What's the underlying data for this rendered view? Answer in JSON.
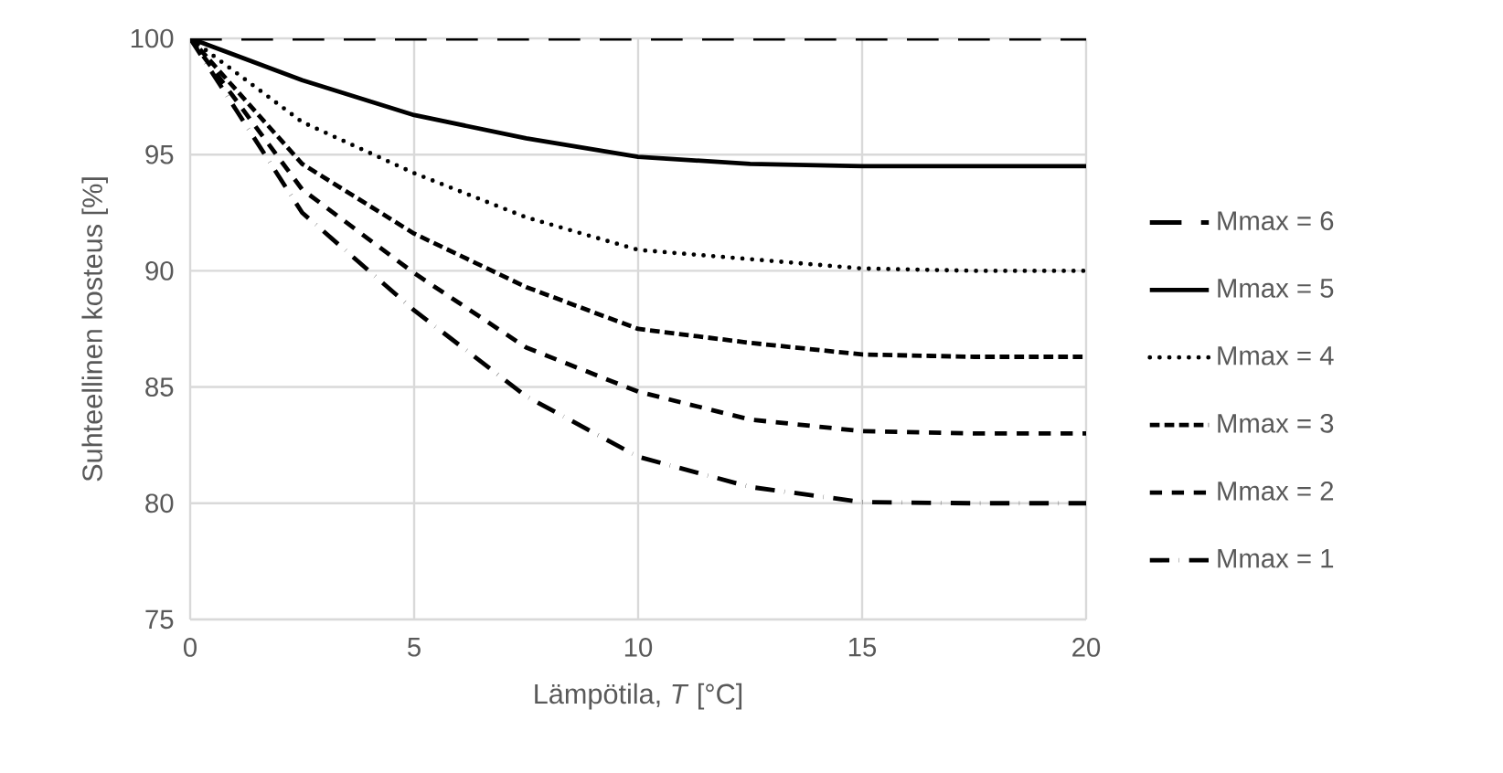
{
  "chart_data": {
    "type": "line",
    "xlabel": "Lämpötila, *T* [°C]",
    "ylabel": "Suhteellinen kosteus [%]",
    "xlim": [
      0,
      20
    ],
    "ylim": [
      75,
      100
    ],
    "xticks": [
      0,
      5,
      10,
      15,
      20
    ],
    "yticks": [
      75,
      80,
      85,
      90,
      95,
      100
    ],
    "grid": true,
    "legend": "right",
    "marker": "none",
    "series": [
      {
        "name": "Mmax = 6",
        "color": "#000000",
        "line_style": "long dashed",
        "x": [
          0,
          5,
          10,
          15,
          20
        ],
        "values": [
          100,
          100,
          100,
          100,
          100
        ]
      },
      {
        "name": "Mmax = 5",
        "color": "#000000",
        "line_style": "solid",
        "x": [
          0,
          2.5,
          5,
          7.5,
          10,
          12.5,
          15,
          17.5,
          20
        ],
        "values": [
          100,
          98.2,
          96.7,
          95.7,
          94.9,
          94.6,
          94.5,
          94.5,
          94.5
        ]
      },
      {
        "name": "Mmax = 4",
        "color": "#000000",
        "line_style": "dotted",
        "x": [
          0,
          2.5,
          5,
          7.5,
          10,
          12.5,
          15,
          17.5,
          20
        ],
        "values": [
          100,
          96.4,
          94.2,
          92.3,
          90.9,
          90.5,
          90.1,
          90.0,
          90.0
        ]
      },
      {
        "name": "Mmax = 3",
        "color": "#000000",
        "line_style": "densely dashed",
        "x": [
          0,
          2.5,
          5,
          7.5,
          10,
          12.5,
          15,
          17.5,
          20
        ],
        "values": [
          100,
          94.6,
          91.6,
          89.3,
          87.5,
          86.9,
          86.4,
          86.3,
          86.3
        ]
      },
      {
        "name": "Mmax = 2",
        "color": "#000000",
        "line_style": "dashed",
        "x": [
          0,
          2.5,
          5,
          7.5,
          10,
          12.5,
          15,
          17.5,
          20
        ],
        "values": [
          100,
          93.5,
          89.9,
          86.7,
          84.8,
          83.6,
          83.1,
          83.0,
          83.0
        ]
      },
      {
        "name": "Mmax = 1",
        "color": "#000000",
        "line_style": "dash dot",
        "x": [
          0,
          2.5,
          5,
          7.5,
          10,
          12.5,
          15,
          17.5,
          20
        ],
        "values": [
          100,
          92.5,
          88.3,
          84.6,
          82.0,
          80.7,
          80.05,
          80.0,
          80.0
        ]
      }
    ]
  }
}
